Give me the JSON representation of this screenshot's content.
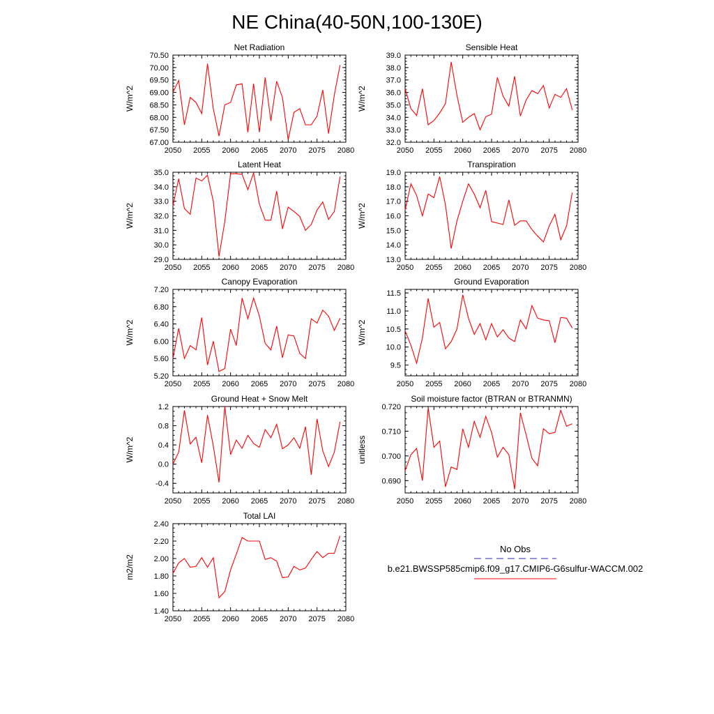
{
  "page": {
    "title": "NE China(40-50N,100-130E)"
  },
  "legend": {
    "obs_label": "No Obs",
    "model_label": "b.e21.BWSSP585cmip6.f09_g17.CMIP6-G6sulfur-WACCM.002",
    "obs_color": "#2b2bb5",
    "model_color": "#ff0000"
  },
  "chart_data": [
    {
      "type": "line",
      "title": "Net Radiation",
      "ylabel": "W/m^2",
      "xlim": [
        2050,
        2080
      ],
      "ylim": [
        67.0,
        70.5
      ],
      "xticks": [
        "2050",
        "2055",
        "2060",
        "2065",
        "2070",
        "2075",
        "2080"
      ],
      "yticks": [
        "67.00",
        "67.50",
        "68.00",
        "68.50",
        "69.00",
        "69.50",
        "70.00",
        "70.50"
      ],
      "series": [
        {
          "color": "#ff0000",
          "x": [
            2050,
            2051,
            2052,
            2053,
            2054,
            2055,
            2056,
            2057,
            2058,
            2059,
            2060,
            2061,
            2062,
            2063,
            2064,
            2065,
            2066,
            2067,
            2068,
            2069,
            2070,
            2071,
            2072,
            2073,
            2074,
            2075,
            2076,
            2077,
            2078,
            2079
          ],
          "values": [
            69.0,
            69.48,
            67.7,
            68.8,
            68.6,
            68.15,
            70.15,
            68.35,
            67.25,
            68.5,
            68.6,
            69.3,
            69.35,
            67.4,
            69.35,
            67.4,
            69.6,
            67.85,
            69.45,
            68.8,
            67.1,
            68.2,
            68.35,
            67.7,
            67.7,
            68.05,
            69.1,
            67.35,
            68.9,
            70.1
          ]
        }
      ]
    },
    {
      "type": "line",
      "title": "Sensible Heat",
      "ylabel": "W/m^2",
      "xlim": [
        2050,
        2080
      ],
      "ylim": [
        32.0,
        39.0
      ],
      "xticks": [
        "2050",
        "2055",
        "2060",
        "2065",
        "2070",
        "2075",
        "2080"
      ],
      "yticks": [
        "32.0",
        "33.0",
        "34.0",
        "35.0",
        "36.0",
        "37.0",
        "38.0",
        "39.0"
      ],
      "series": [
        {
          "color": "#ff0000",
          "x": [
            2050,
            2051,
            2052,
            2053,
            2054,
            2055,
            2056,
            2057,
            2058,
            2059,
            2060,
            2061,
            2062,
            2063,
            2064,
            2065,
            2066,
            2067,
            2068,
            2069,
            2070,
            2071,
            2072,
            2073,
            2074,
            2075,
            2076,
            2077,
            2078,
            2079
          ],
          "values": [
            36.3,
            34.7,
            34.15,
            36.3,
            33.4,
            33.75,
            34.35,
            35.1,
            38.45,
            35.75,
            33.6,
            34.0,
            34.3,
            33.0,
            34.05,
            34.25,
            37.2,
            35.7,
            34.9,
            37.3,
            34.1,
            35.4,
            36.15,
            35.9,
            36.55,
            34.75,
            35.85,
            35.6,
            36.3,
            34.6
          ]
        }
      ]
    },
    {
      "type": "line",
      "title": "Latent Heat",
      "ylabel": "W/m^2",
      "xlim": [
        2050,
        2080
      ],
      "ylim": [
        29.0,
        35.0
      ],
      "xticks": [
        "2050",
        "2055",
        "2060",
        "2065",
        "2070",
        "2075",
        "2080"
      ],
      "yticks": [
        "29.0",
        "30.0",
        "31.0",
        "32.0",
        "33.0",
        "34.0",
        "35.0"
      ],
      "series": [
        {
          "color": "#ff0000",
          "x": [
            2050,
            2051,
            2052,
            2053,
            2054,
            2055,
            2056,
            2057,
            2058,
            2059,
            2060,
            2061,
            2062,
            2063,
            2064,
            2065,
            2066,
            2067,
            2068,
            2069,
            2070,
            2071,
            2072,
            2073,
            2074,
            2075,
            2076,
            2077,
            2078,
            2079
          ],
          "values": [
            32.7,
            34.55,
            32.5,
            32.1,
            34.6,
            34.4,
            34.8,
            33.0,
            29.2,
            31.6,
            34.9,
            34.9,
            34.85,
            33.8,
            34.95,
            32.8,
            31.7,
            31.7,
            33.7,
            31.1,
            32.6,
            32.3,
            31.95,
            31.0,
            31.4,
            32.4,
            32.95,
            31.75,
            32.3,
            34.7
          ]
        }
      ]
    },
    {
      "type": "line",
      "title": "Transpiration",
      "ylabel": "W/m^2",
      "xlim": [
        2050,
        2080
      ],
      "ylim": [
        13.0,
        19.0
      ],
      "xticks": [
        "2050",
        "2055",
        "2060",
        "2065",
        "2070",
        "2075",
        "2080"
      ],
      "yticks": [
        "13.0",
        "14.0",
        "15.0",
        "16.0",
        "17.0",
        "18.0",
        "19.0"
      ],
      "series": [
        {
          "color": "#ff0000",
          "x": [
            2050,
            2051,
            2052,
            2053,
            2054,
            2055,
            2056,
            2057,
            2058,
            2059,
            2060,
            2061,
            2062,
            2063,
            2064,
            2065,
            2066,
            2067,
            2068,
            2069,
            2070,
            2071,
            2072,
            2073,
            2074,
            2075,
            2076,
            2077,
            2078,
            2079
          ],
          "values": [
            16.4,
            18.2,
            17.4,
            16.0,
            17.5,
            17.25,
            18.7,
            16.75,
            13.75,
            15.65,
            17.0,
            18.2,
            17.5,
            16.55,
            17.75,
            15.6,
            15.5,
            15.4,
            17.1,
            15.35,
            15.65,
            15.65,
            15.05,
            14.6,
            14.2,
            15.3,
            16.1,
            14.35,
            15.3,
            17.6
          ]
        }
      ]
    },
    {
      "type": "line",
      "title": "Canopy Evaporation",
      "ylabel": "W/m^2",
      "xlim": [
        2050,
        2080
      ],
      "ylim": [
        5.2,
        7.2
      ],
      "xticks": [
        "2050",
        "2055",
        "2060",
        "2065",
        "2070",
        "2075",
        "2080"
      ],
      "yticks": [
        "5.20",
        "5.60",
        "6.00",
        "6.40",
        "6.80",
        "7.20"
      ],
      "series": [
        {
          "color": "#ff0000",
          "x": [
            2050,
            2051,
            2052,
            2053,
            2054,
            2055,
            2056,
            2057,
            2058,
            2059,
            2060,
            2061,
            2062,
            2063,
            2064,
            2065,
            2066,
            2067,
            2068,
            2069,
            2070,
            2071,
            2072,
            2073,
            2074,
            2075,
            2076,
            2077,
            2078,
            2079
          ],
          "values": [
            5.6,
            6.3,
            5.6,
            5.9,
            5.8,
            6.55,
            5.45,
            6.0,
            5.3,
            5.37,
            6.28,
            5.9,
            7.0,
            6.52,
            7.0,
            6.58,
            5.95,
            5.8,
            6.35,
            5.62,
            6.15,
            6.12,
            5.72,
            5.6,
            6.52,
            6.42,
            6.72,
            6.58,
            6.25,
            6.53
          ]
        }
      ]
    },
    {
      "type": "line",
      "title": "Ground Evaporation",
      "ylabel": "W/m^2",
      "xlim": [
        2050,
        2080
      ],
      "ylim": [
        9.2,
        11.6
      ],
      "xticks": [
        "2050",
        "2055",
        "2060",
        "2065",
        "2070",
        "2075",
        "2080"
      ],
      "yticks": [
        "9.5",
        "10.0",
        "10.5",
        "11.0",
        "11.5"
      ],
      "series": [
        {
          "color": "#ff0000",
          "x": [
            2050,
            2051,
            2052,
            2053,
            2054,
            2055,
            2056,
            2057,
            2058,
            2059,
            2060,
            2061,
            2062,
            2063,
            2064,
            2065,
            2066,
            2067,
            2068,
            2069,
            2070,
            2071,
            2072,
            2073,
            2074,
            2075,
            2076,
            2077,
            2078,
            2079
          ],
          "values": [
            10.45,
            10.05,
            9.55,
            10.25,
            11.35,
            10.55,
            10.68,
            9.95,
            10.15,
            10.5,
            11.45,
            10.8,
            10.35,
            10.65,
            10.2,
            10.65,
            10.28,
            10.48,
            10.25,
            10.15,
            10.75,
            10.5,
            11.15,
            10.8,
            10.75,
            10.73,
            10.12,
            10.82,
            10.8,
            10.53
          ]
        }
      ]
    },
    {
      "type": "line",
      "title": "Ground Heat + Snow Melt",
      "ylabel": "W/m^2",
      "xlim": [
        2050,
        2080
      ],
      "ylim": [
        -0.6,
        1.2
      ],
      "xticks": [
        "2050",
        "2055",
        "2060",
        "2065",
        "2070",
        "2075",
        "2080"
      ],
      "yticks": [
        "-0.4",
        "0.0",
        "0.4",
        "0.8",
        "1.2"
      ],
      "series": [
        {
          "color": "#ff0000",
          "x": [
            2050,
            2051,
            2052,
            2053,
            2054,
            2055,
            2056,
            2057,
            2058,
            2059,
            2060,
            2061,
            2062,
            2063,
            2064,
            2065,
            2066,
            2067,
            2068,
            2069,
            2070,
            2071,
            2072,
            2073,
            2074,
            2075,
            2076,
            2077,
            2078,
            2079
          ],
          "values": [
            0.0,
            0.25,
            1.12,
            0.42,
            0.56,
            0.03,
            1.02,
            0.38,
            -0.38,
            1.2,
            0.2,
            0.5,
            0.33,
            0.6,
            0.43,
            0.35,
            0.72,
            0.55,
            0.83,
            0.32,
            0.4,
            0.55,
            0.33,
            0.78,
            -0.22,
            0.94,
            0.28,
            -0.05,
            0.25,
            0.88
          ]
        }
      ]
    },
    {
      "type": "line",
      "title": "Soil moisture factor (BTRAN or BTRANMN)",
      "ylabel": "unitless",
      "xlim": [
        2050,
        2080
      ],
      "ylim": [
        0.685,
        0.72
      ],
      "xticks": [
        "2050",
        "2055",
        "2060",
        "2065",
        "2070",
        "2075",
        "2080"
      ],
      "yticks": [
        "0.690",
        "0.700",
        "0.710",
        "0.720"
      ],
      "series": [
        {
          "color": "#ff0000",
          "x": [
            2050,
            2051,
            2052,
            2053,
            2054,
            2055,
            2056,
            2057,
            2058,
            2059,
            2060,
            2061,
            2062,
            2063,
            2064,
            2065,
            2066,
            2067,
            2068,
            2069,
            2070,
            2071,
            2072,
            2073,
            2074,
            2075,
            2076,
            2077,
            2078,
            2079
          ],
          "values": [
            0.694,
            0.7005,
            0.703,
            0.69,
            0.7195,
            0.7035,
            0.706,
            0.6875,
            0.6955,
            0.6945,
            0.711,
            0.7035,
            0.714,
            0.7075,
            0.716,
            0.7095,
            0.6995,
            0.7035,
            0.7005,
            0.6865,
            0.7175,
            0.7085,
            0.699,
            0.696,
            0.711,
            0.709,
            0.7095,
            0.7185,
            0.712,
            0.713
          ]
        }
      ]
    },
    {
      "type": "line",
      "title": "Total LAI",
      "ylabel": "m2/m2",
      "xlim": [
        2050,
        2080
      ],
      "ylim": [
        1.4,
        2.4
      ],
      "xticks": [
        "2050",
        "2055",
        "2060",
        "2065",
        "2070",
        "2075",
        "2080"
      ],
      "yticks": [
        "1.40",
        "1.60",
        "1.80",
        "2.00",
        "2.20",
        "2.40"
      ],
      "series": [
        {
          "color": "#ff0000",
          "x": [
            2050,
            2051,
            2052,
            2053,
            2054,
            2055,
            2056,
            2057,
            2058,
            2059,
            2060,
            2061,
            2062,
            2063,
            2064,
            2065,
            2066,
            2067,
            2068,
            2069,
            2070,
            2071,
            2072,
            2073,
            2074,
            2075,
            2076,
            2077,
            2078,
            2079
          ],
          "values": [
            1.83,
            1.95,
            2.0,
            1.9,
            1.91,
            2.01,
            1.9,
            2.01,
            1.55,
            1.62,
            1.87,
            2.05,
            2.24,
            2.2,
            2.2,
            2.2,
            1.99,
            2.01,
            1.97,
            1.78,
            1.79,
            1.91,
            1.87,
            1.89,
            1.99,
            2.08,
            2.01,
            2.06,
            2.06,
            2.26
          ]
        }
      ]
    }
  ]
}
